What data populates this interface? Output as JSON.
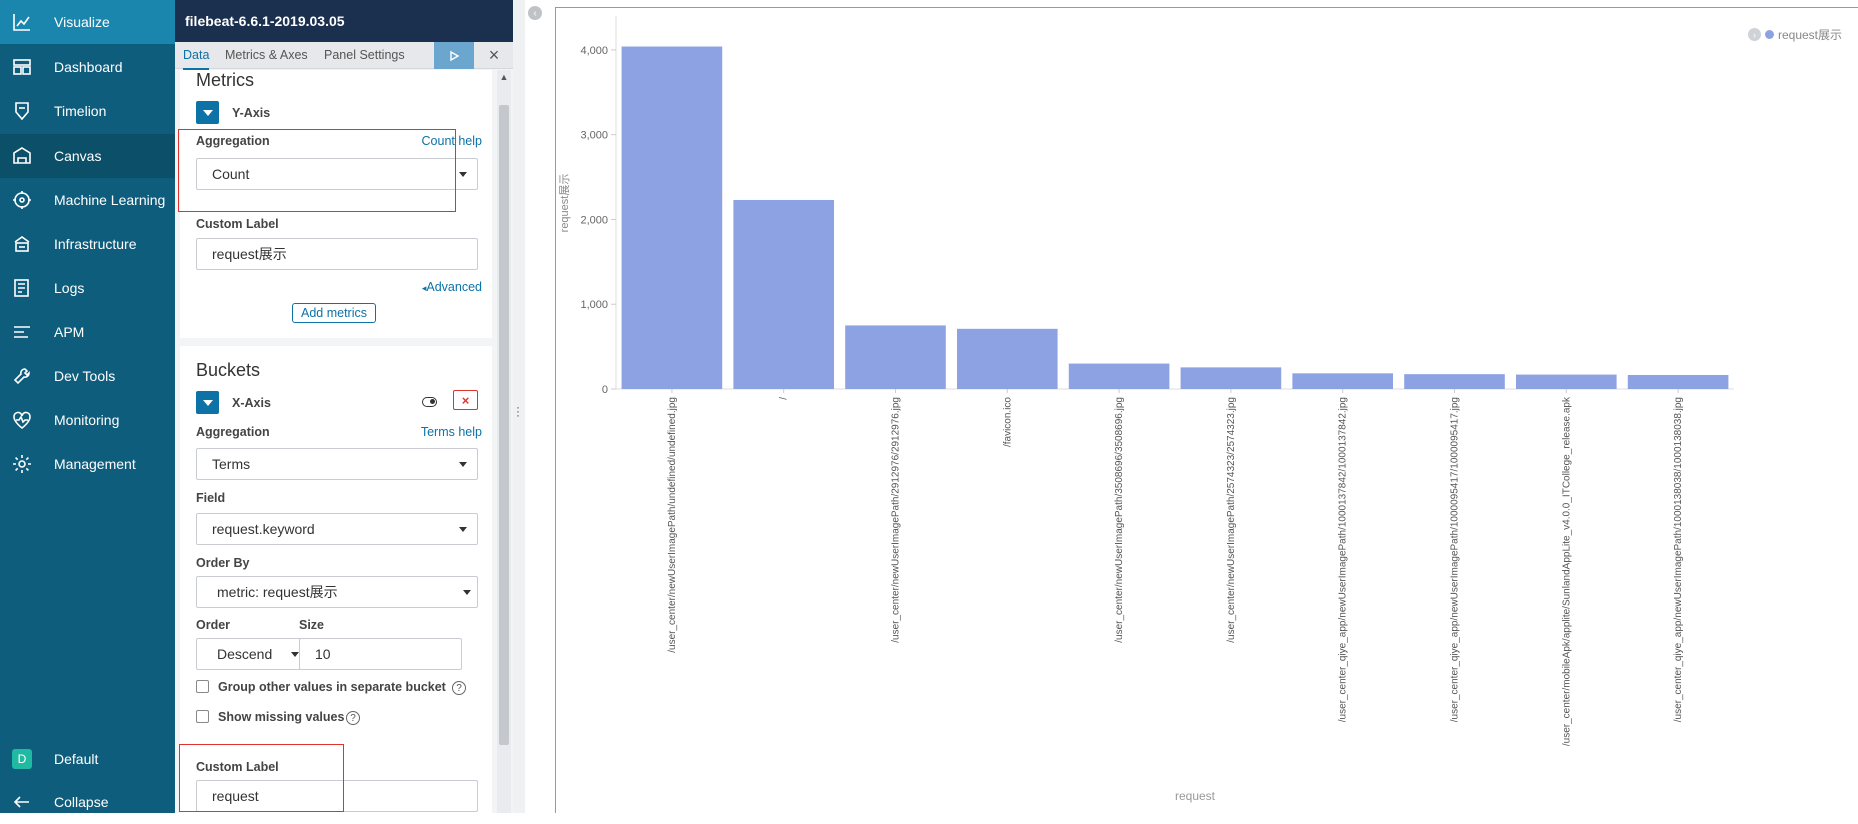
{
  "nav": {
    "items": [
      {
        "label": "Visualize",
        "icon": "visualize-icon"
      },
      {
        "label": "Dashboard",
        "icon": "dashboard-icon"
      },
      {
        "label": "Timelion",
        "icon": "timelion-icon"
      },
      {
        "label": "Canvas",
        "icon": "canvas-icon"
      },
      {
        "label": "Machine Learning",
        "icon": "machine-learning-icon"
      },
      {
        "label": "Infrastructure",
        "icon": "infrastructure-icon"
      },
      {
        "label": "Logs",
        "icon": "logs-icon"
      },
      {
        "label": "APM",
        "icon": "apm-icon"
      },
      {
        "label": "Dev Tools",
        "icon": "dev-tools-icon"
      },
      {
        "label": "Monitoring",
        "icon": "monitoring-icon"
      },
      {
        "label": "Management",
        "icon": "management-icon"
      }
    ],
    "space": {
      "badge": "D",
      "label": "Default"
    },
    "collapse_label": "Collapse"
  },
  "editor": {
    "title": "filebeat-6.6.1-2019.03.05",
    "tabs": [
      "Data",
      "Metrics & Axes",
      "Panel Settings"
    ],
    "metrics": {
      "heading": "Metrics",
      "axis_label": "Y-Axis",
      "aggregation_label": "Aggregation",
      "help_link": "Count help",
      "aggregation_value": "Count",
      "custom_label_label": "Custom Label",
      "custom_label_value": "request展示",
      "advanced_link": "Advanced",
      "add_metrics": "Add metrics"
    },
    "buckets": {
      "heading": "Buckets",
      "axis_label": "X-Axis",
      "aggregation_label": "Aggregation",
      "help_link": "Terms help",
      "aggregation_value": "Terms",
      "field_label": "Field",
      "field_value": "request.keyword",
      "order_by_label": "Order By",
      "order_by_value": "metric: request展示",
      "order_label": "Order",
      "order_value": "Descend",
      "size_label": "Size",
      "size_value": "10",
      "group_other_label": "Group other values in separate bucket",
      "show_missing_label": "Show missing values",
      "custom_label_label": "Custom Label",
      "custom_label_value": "request"
    }
  },
  "chart_data": {
    "type": "bar",
    "categories": [
      "/user_center/newUserImagePath/undefined/undefined.jpg",
      "/",
      "/user_center/newUserImagePath/2912976/2912976.jpg",
      "/favicon.ico",
      "/user_center/newUserImagePath/3508696/3508696.jpg",
      "/user_center/newUserImagePath/2574323/2574323.jpg",
      "/user_center_qiye_app/newUserImagePath/1000137842/1000137842.jpg",
      "/user_center_qiye_app/newUserImagePath/1000095417/1000095417.jpg",
      "/user_center/mobileApk/applite/SunlandAppLite_v4.0.0_ITCollege_release.apk",
      "/user_center_qiye_app/newUserImagePath/1000138038/1000138038.jpg"
    ],
    "values": [
      4040,
      2230,
      750,
      710,
      300,
      255,
      185,
      175,
      170,
      165
    ],
    "xlabel": "request",
    "ylabel": "request展示",
    "yticks": [
      "0",
      "1,000",
      "2,000",
      "3,000",
      "4,000"
    ],
    "ylim": [
      0,
      4400
    ],
    "legend": {
      "label": "request展示",
      "placement": "top-right"
    },
    "bar_color": "#8da2e3",
    "grid": false
  }
}
